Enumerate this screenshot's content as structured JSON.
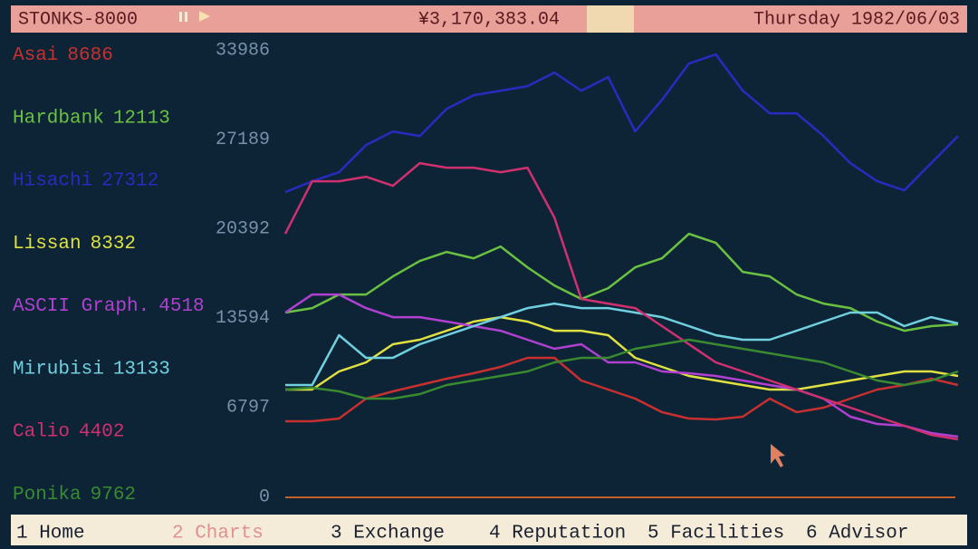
{
  "header": {
    "title": "STONKS-8000",
    "money": "¥3,170,383.04",
    "date": "Thursday 1982/06/03"
  },
  "chart_data": {
    "type": "line",
    "ylim": [
      0,
      33986
    ],
    "yticks": [
      0,
      6797,
      13594,
      20392,
      27189,
      33986
    ],
    "series": [
      {
        "name": "Asai",
        "price": 8686,
        "color": "#c83030",
        "values": [
          5720,
          5720,
          5927,
          7443,
          7995,
          8477,
          8960,
          9373,
          9856,
          10545,
          10545,
          8822,
          8133,
          7443,
          6410,
          5927,
          5858,
          6065,
          7443,
          6410,
          6754,
          7443,
          8133,
          8477,
          8960,
          8477
        ]
      },
      {
        "name": "Hardbank",
        "price": 12113,
        "color": "#6ac040",
        "values": [
          13991,
          14335,
          15369,
          15369,
          16748,
          17919,
          18608,
          18126,
          19022,
          17437,
          16058,
          15025,
          15852,
          17437,
          18126,
          19987,
          19298,
          17092,
          16748,
          15369,
          14680,
          14335,
          13302,
          12612,
          12957,
          13095
        ]
      },
      {
        "name": "Hisachi",
        "price": 27312,
        "color": "#2a2ac0",
        "values": [
          23157,
          23984,
          24673,
          26741,
          27775,
          27430,
          29498,
          30532,
          30876,
          31221,
          32255,
          30876,
          31910,
          27775,
          30187,
          32944,
          33633,
          30876,
          29153,
          29153,
          27430,
          25363,
          23984,
          23295,
          25363,
          27430
        ]
      },
      {
        "name": "Lissan",
        "price": 8332,
        "color": "#e0e040",
        "values": [
          8133,
          8133,
          9511,
          10200,
          11579,
          11923,
          12612,
          13302,
          13646,
          13302,
          12612,
          12612,
          12268,
          10545,
          9856,
          9166,
          8822,
          8477,
          8133,
          8133,
          8477,
          8822,
          9166,
          9511,
          9511,
          9166
        ]
      },
      {
        "name": "ASCII Graph.",
        "price": 4518,
        "color": "#b040d0",
        "values": [
          13991,
          15369,
          15369,
          14335,
          13646,
          13646,
          13302,
          12957,
          12612,
          11923,
          11234,
          11579,
          10200,
          10200,
          9511,
          9373,
          9166,
          8822,
          8477,
          8133,
          7443,
          6065,
          5514,
          5376,
          4824,
          4549
        ]
      },
      {
        "name": "Mirubisi",
        "price": 13133,
        "color": "#70d0e0",
        "values": [
          8477,
          8477,
          12268,
          10545,
          10545,
          11579,
          12268,
          12957,
          13646,
          14335,
          14680,
          14335,
          14335,
          13991,
          13646,
          12957,
          12268,
          11923,
          11923,
          12612,
          13302,
          13991,
          13991,
          12957,
          13646,
          13164
        ]
      },
      {
        "name": "Calio",
        "price": 4402,
        "color": "#d03070",
        "values": [
          19987,
          23984,
          23984,
          24329,
          23640,
          25363,
          25018,
          25018,
          24673,
          25018,
          21227,
          15025,
          14680,
          14335,
          12957,
          11579,
          10200,
          9511,
          8822,
          8133,
          7443,
          6754,
          6065,
          5376,
          4687,
          4342
        ]
      },
      {
        "name": "Ponika",
        "price": 9762,
        "color": "#3a8a30",
        "values": [
          8133,
          8270,
          7995,
          7443,
          7443,
          7788,
          8477,
          8822,
          9166,
          9511,
          10200,
          10545,
          10545,
          11234,
          11579,
          11923,
          11579,
          11234,
          10889,
          10545,
          10200,
          9511,
          8822,
          8477,
          8822,
          9511
        ]
      }
    ]
  },
  "tabs": [
    "1 Home",
    "2 Charts",
    "3 Exchange",
    "4 Reputation",
    "5 Facilities",
    "6 Advisor"
  ]
}
